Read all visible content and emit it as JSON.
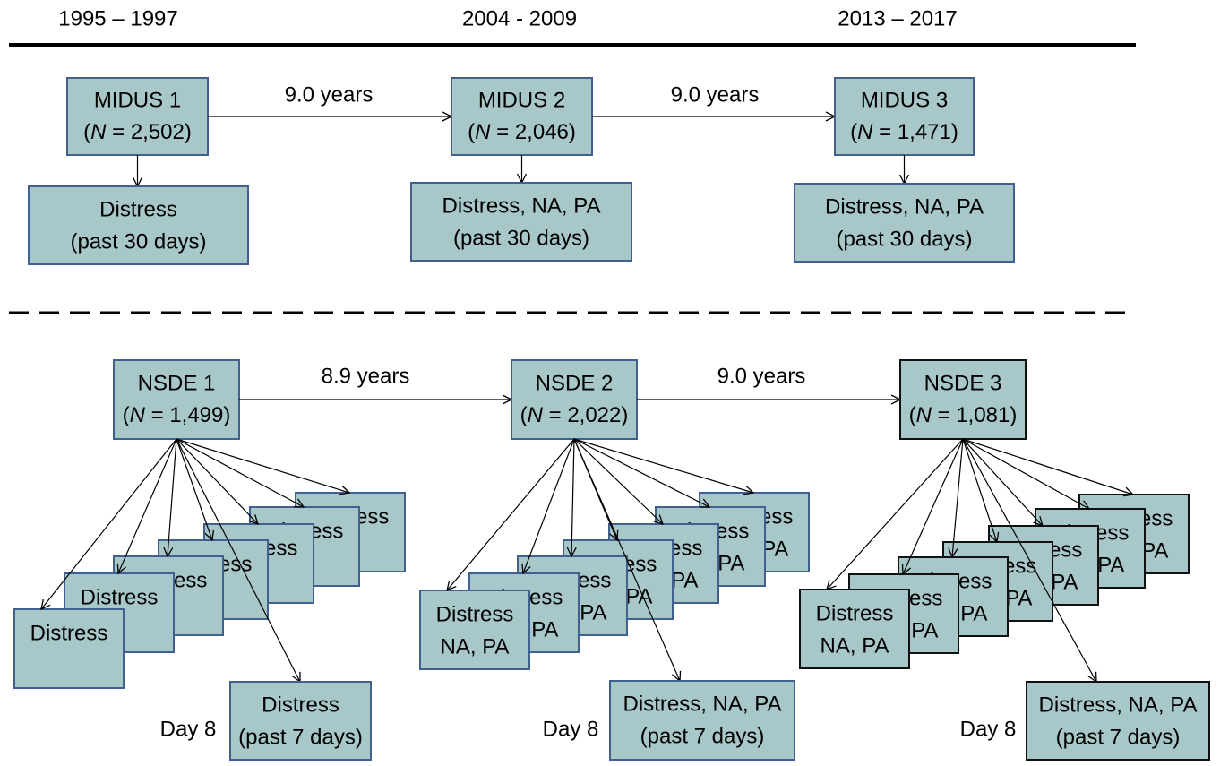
{
  "periods": [
    "1995 – 1997",
    "2004 - 2009",
    "2013 – 2017"
  ],
  "midus": {
    "waves": [
      {
        "name": "MIDUS 1",
        "n": "(N = 2,502)",
        "measure": [
          "Distress",
          "(past 30 days)"
        ]
      },
      {
        "name": "MIDUS 2",
        "n": "(N = 2,046)",
        "measure": [
          "Distress, NA, PA",
          "(past 30 days)"
        ]
      },
      {
        "name": "MIDUS 3",
        "n": "(N = 1,471)",
        "measure": [
          "Distress, NA, PA",
          "(past 30 days)"
        ]
      }
    ],
    "intervals": [
      "9.0 years",
      "9.0 years"
    ]
  },
  "nsde": {
    "waves": [
      {
        "name": "NSDE 1",
        "n": "(N = 1,499)",
        "daily": [
          [
            "Distress"
          ],
          [
            "Distress"
          ],
          [
            "Distress"
          ],
          [
            "Distress"
          ],
          [
            "Distress"
          ],
          [
            "Distress"
          ],
          [
            "Distress"
          ]
        ],
        "day8_label": "Day 8",
        "day8": [
          "Distress",
          "(past 7 days)"
        ]
      },
      {
        "name": "NSDE 2",
        "n": "(N = 2,022)",
        "daily": [
          [
            "Distress",
            "NA, PA"
          ],
          [
            "Distress",
            "NA, PA"
          ],
          [
            "Distress",
            "NA, PA"
          ],
          [
            "Distress",
            "NA, PA"
          ],
          [
            "Distress",
            "NA, PA"
          ],
          [
            "Distress",
            "NA, PA"
          ],
          [
            "Distress",
            "NA, PA"
          ]
        ],
        "day8_label": "Day 8",
        "day8": [
          "Distress, NA, PA",
          "(past 7 days)"
        ]
      },
      {
        "name": "NSDE 3",
        "n": "(N = 1,081)",
        "daily": [
          [
            "Distress",
            "NA, PA"
          ],
          [
            "Distress",
            "NA, PA"
          ],
          [
            "Distress",
            "NA, PA"
          ],
          [
            "Distress",
            "NA, PA"
          ],
          [
            "Distress",
            "NA, PA"
          ],
          [
            "Distress",
            "NA, PA"
          ],
          [
            "Distress",
            "NA, PA"
          ]
        ],
        "day8_label": "Day 8",
        "day8": [
          "Distress, NA, PA",
          "(past 7 days)"
        ]
      }
    ],
    "intervals": [
      "8.9 years",
      "9.0 years"
    ]
  }
}
